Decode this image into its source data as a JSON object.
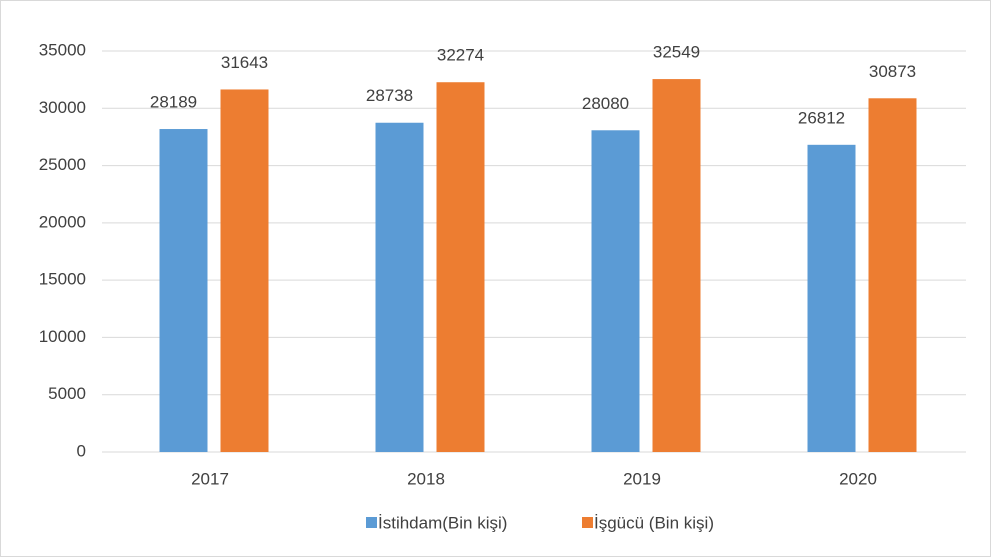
{
  "chart_data": {
    "type": "bar",
    "categories": [
      "2017",
      "2018",
      "2019",
      "2020"
    ],
    "series": [
      {
        "name": "İstihdam(Bin kişi)",
        "color": "#5b9bd5",
        "values": [
          28189,
          28738,
          28080,
          26812
        ]
      },
      {
        "name": "İşgücü (Bin kişi)",
        "color": "#ed7d31",
        "values": [
          31643,
          32274,
          32549,
          30873
        ]
      }
    ],
    "ylim": [
      0,
      35000
    ],
    "yticks": [
      0,
      5000,
      10000,
      15000,
      20000,
      25000,
      30000,
      35000
    ],
    "grid": true,
    "legend": "bottom"
  }
}
